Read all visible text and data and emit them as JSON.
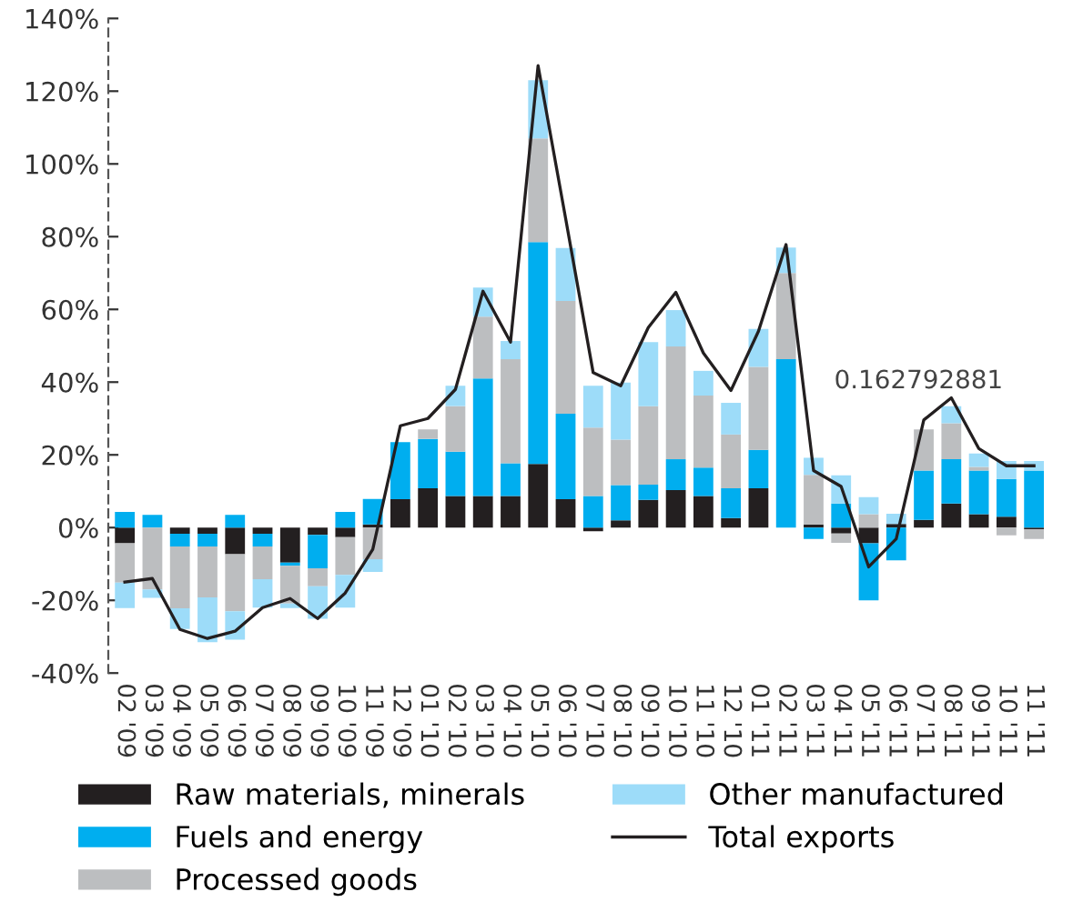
{
  "chart_data": {
    "type": "bar",
    "stacked": true,
    "categories": [
      "02 '09",
      "03 '09",
      "04 '09",
      "05 '09",
      "06 '09",
      "07 '09",
      "08 '09",
      "09 '09",
      "10 '09",
      "11 '09",
      "12 '09",
      "01 '10",
      "02 '10",
      "03 '10",
      "04 '10",
      "05 '10",
      "06 '10",
      "07 '10",
      "08 '10",
      "09 '10",
      "10 '10",
      "11 '10",
      "12 '10",
      "01 '11",
      "02 '11",
      "03 '11",
      "04 '11",
      "05 '11",
      "06 '11",
      "07 '11",
      "08 '11",
      "09 '11",
      "10 '11",
      "11 '11"
    ],
    "series": [
      {
        "name": "Raw materials, minerals",
        "color": "#231f20",
        "values": [
          -4.3,
          0,
          -1.7,
          -1.7,
          -7.3,
          -1.7,
          -9.6,
          -2,
          -2.6,
          0.9,
          7.8,
          10.8,
          8.7,
          8.7,
          8.7,
          17.5,
          7.8,
          -1,
          2,
          7.6,
          10.3,
          8.7,
          2.6,
          10.8,
          0,
          0.9,
          -1.6,
          -4.3,
          1,
          2.1,
          6.6,
          3.7,
          3,
          -0.5
        ]
      },
      {
        "name": "Fuels and energy",
        "color": "#00aeef",
        "values": [
          4.3,
          3.5,
          -3.5,
          -3.5,
          3.5,
          -3.5,
          -0.9,
          -9.2,
          4.3,
          7,
          15.7,
          13.6,
          12.2,
          32.3,
          9,
          61,
          23.5,
          8.7,
          9.7,
          4.2,
          8.5,
          7.8,
          8.2,
          10.6,
          46.3,
          -3.1,
          6.6,
          -15.7,
          -9,
          13.6,
          12.2,
          12,
          10.4,
          15.7
        ]
      },
      {
        "name": "Processed goods",
        "color": "#bcbec0",
        "values": [
          -10.8,
          -17,
          -17,
          -14,
          -15.7,
          -9,
          -10.4,
          -4.9,
          -10.4,
          -8.7,
          0,
          2.6,
          12.5,
          17,
          28.6,
          28.5,
          31,
          18.8,
          12.5,
          21.6,
          31,
          19.8,
          14.8,
          22.8,
          23.7,
          13.6,
          -2.6,
          3.7,
          null,
          11.3,
          9.9,
          1,
          -2.1,
          -2.6
        ]
      },
      {
        "name": "Other manufactured",
        "color": "#9ddcf9",
        "values": [
          -7,
          -2.3,
          -5.7,
          -12.3,
          -7.8,
          -7.8,
          -1.2,
          -9,
          -9,
          -3.5,
          0,
          0,
          5.6,
          8,
          5,
          16,
          14.6,
          11.5,
          15.7,
          17.6,
          10,
          6.8,
          8.7,
          10.4,
          7,
          4.7,
          7.8,
          4.7,
          2.8,
          0,
          4.7,
          3.7,
          4.9,
          2.6
        ]
      },
      {
        "name": "Total exports",
        "type": "line",
        "color": "#231f20",
        "values": [
          -15,
          -14,
          -28,
          -30.5,
          -28.5,
          -22,
          -19.5,
          -25,
          -18,
          -6,
          28,
          30,
          38,
          65,
          51,
          127,
          85,
          42.6,
          39,
          55,
          64.7,
          48,
          37.7,
          54,
          77.8,
          15.7,
          11.3,
          -10.8,
          -3.1,
          29.6,
          35.7,
          21.7,
          17,
          17
        ]
      }
    ],
    "ylim": [
      -40,
      140
    ],
    "yticks": [
      {
        "value": -40,
        "label": "-40%"
      },
      {
        "value": -20,
        "label": "-20%"
      },
      {
        "value": 0,
        "label": "0%"
      },
      {
        "value": 20,
        "label": "20%"
      },
      {
        "value": 40,
        "label": "40%"
      },
      {
        "value": 60,
        "label": "60%"
      },
      {
        "value": 80,
        "label": "80%"
      },
      {
        "value": 100,
        "label": "100%"
      },
      {
        "value": 120,
        "label": "120%"
      },
      {
        "value": 140,
        "label": "140%"
      }
    ],
    "annotations": [
      "0.162792881"
    ],
    "grid": false,
    "legend": "bottom"
  }
}
